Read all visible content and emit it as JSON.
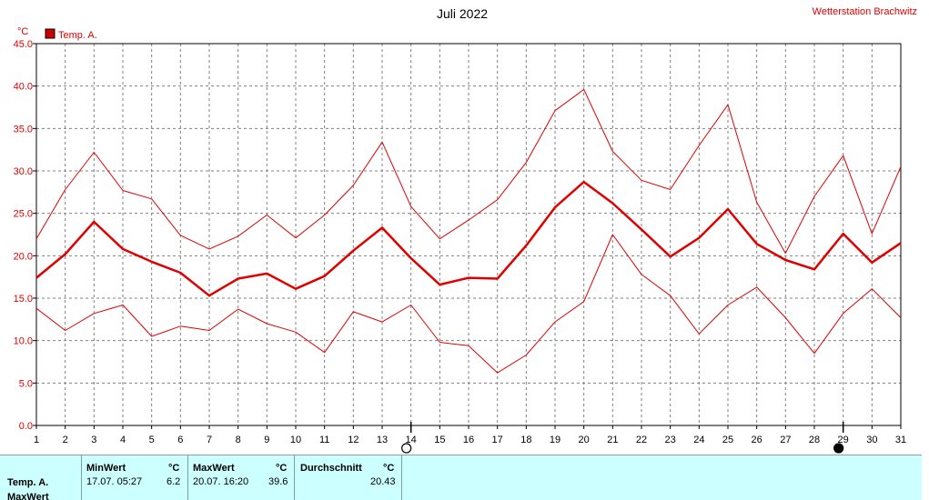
{
  "header": {
    "title": "Juli 2022",
    "station": "Wetterstation Brachwitz",
    "unit": "°C",
    "legend_label": "Temp. A."
  },
  "colors": {
    "series": "#e00000",
    "legend_swatch": "#cc0000",
    "grid": "#808080",
    "panel_bg": "#ccffff"
  },
  "chart_data": {
    "type": "line",
    "title": "Juli 2022",
    "ylabel": "°C",
    "ylim": [
      0,
      45
    ],
    "yticks": [
      0,
      5,
      10,
      15,
      20,
      25,
      30,
      35,
      40,
      45
    ],
    "ytick_labels": [
      "0.0",
      "5.0",
      "10.0",
      "15.0",
      "20.0",
      "25.0",
      "30.0",
      "35.0",
      "40.0",
      "45.0"
    ],
    "xlim": [
      1,
      31
    ],
    "x": [
      1,
      2,
      3,
      4,
      5,
      6,
      7,
      8,
      9,
      10,
      11,
      12,
      13,
      14,
      15,
      16,
      17,
      18,
      19,
      20,
      21,
      22,
      23,
      24,
      25,
      26,
      27,
      28,
      29,
      30,
      31
    ],
    "grid": true,
    "legend": "top-left",
    "moon_phases": [
      {
        "day": 14,
        "phase": "full-moon"
      },
      {
        "day": 29,
        "phase": "new-moon"
      }
    ],
    "series": [
      {
        "name": "Temp. A.",
        "role": "max",
        "values": [
          22.0,
          27.8,
          32.2,
          27.7,
          26.7,
          22.4,
          20.8,
          22.3,
          24.8,
          22.1,
          24.8,
          28.3,
          33.4,
          25.8,
          22.0,
          24.2,
          26.6,
          31.0,
          37.1,
          39.6,
          32.3,
          28.9,
          27.8,
          33.0,
          37.8,
          26.3,
          20.3,
          27.0,
          31.8,
          22.6,
          30.5
        ]
      },
      {
        "name": "Temp. A.",
        "role": "avg",
        "values": [
          17.4,
          20.2,
          24.0,
          20.8,
          19.3,
          18.0,
          15.3,
          17.3,
          17.9,
          16.1,
          17.6,
          20.6,
          23.3,
          19.7,
          16.6,
          17.4,
          17.3,
          21.2,
          25.7,
          28.7,
          26.2,
          23.1,
          19.9,
          22.1,
          25.5,
          21.4,
          19.5,
          18.4,
          22.6,
          19.2,
          21.5
        ]
      },
      {
        "name": "Temp. A.",
        "role": "min",
        "values": [
          13.8,
          11.2,
          13.2,
          14.2,
          10.5,
          11.7,
          11.2,
          13.7,
          12.0,
          11.0,
          8.6,
          13.4,
          12.2,
          14.2,
          9.8,
          9.4,
          6.2,
          8.3,
          12.2,
          14.6,
          22.5,
          17.8,
          15.3,
          10.8,
          14.2,
          16.3,
          12.7,
          8.5,
          13.2,
          16.1,
          12.7
        ]
      }
    ]
  },
  "stats": {
    "row_label": "Temp. A.",
    "row_label_next": "MaxWert",
    "min": {
      "header": "MinWert",
      "unit": "°C",
      "time": "17.07.  05:27",
      "value": "6.2"
    },
    "max": {
      "header": "MaxWert",
      "unit": "°C",
      "time": "20.07.  16:20",
      "value": "39.6"
    },
    "avg": {
      "header": "Durchschnitt",
      "unit": "°C",
      "value": "20.43"
    }
  }
}
